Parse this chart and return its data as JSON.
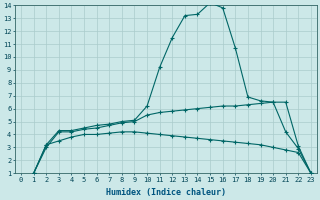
{
  "xlabel": "Humidex (Indice chaleur)",
  "ylabel": "",
  "background_color": "#cce8e8",
  "grid_color": "#aacccc",
  "line_color": "#006666",
  "xlim": [
    -0.5,
    23.5
  ],
  "ylim": [
    1,
    14
  ],
  "xtick_labels": [
    "0",
    "1",
    "2",
    "3",
    "4",
    "5",
    "6",
    "7",
    "8",
    "9",
    "10",
    "11",
    "12",
    "13",
    "14",
    "15",
    "16",
    "17",
    "18",
    "19",
    "20",
    "21",
    "22",
    "23"
  ],
  "ytick_labels": [
    "1",
    "2",
    "3",
    "4",
    "5",
    "6",
    "7",
    "8",
    "9",
    "10",
    "11",
    "12",
    "13",
    "14"
  ],
  "curve1_x": [
    1,
    2,
    3,
    4,
    5,
    6,
    7,
    8,
    9,
    10,
    11,
    12,
    13,
    14,
    15,
    16,
    17,
    18,
    19,
    20,
    21,
    22,
    23
  ],
  "curve1_y": [
    1.0,
    3.2,
    4.3,
    4.3,
    4.5,
    4.7,
    4.8,
    5.0,
    5.1,
    6.2,
    9.2,
    11.5,
    13.2,
    13.3,
    14.2,
    13.8,
    10.7,
    6.9,
    6.6,
    6.5,
    4.2,
    2.9,
    1.0
  ],
  "curve2_x": [
    1,
    2,
    3,
    4,
    5,
    6,
    7,
    8,
    9,
    10,
    11,
    12,
    13,
    14,
    15,
    16,
    17,
    18,
    19,
    20,
    21,
    22,
    23
  ],
  "curve2_y": [
    1.0,
    3.0,
    4.2,
    4.2,
    4.4,
    4.5,
    4.7,
    4.9,
    5.0,
    5.5,
    5.7,
    5.8,
    5.9,
    6.0,
    6.1,
    6.2,
    6.2,
    6.3,
    6.4,
    6.5,
    6.5,
    3.1,
    1.0
  ],
  "curve3_x": [
    1,
    2,
    3,
    4,
    5,
    6,
    7,
    8,
    9,
    10,
    11,
    12,
    13,
    14,
    15,
    16,
    17,
    18,
    19,
    20,
    21,
    22,
    23
  ],
  "curve3_y": [
    1.0,
    3.2,
    3.5,
    3.8,
    4.0,
    4.0,
    4.1,
    4.2,
    4.2,
    4.1,
    4.0,
    3.9,
    3.8,
    3.7,
    3.6,
    3.5,
    3.4,
    3.3,
    3.2,
    3.0,
    2.8,
    2.6,
    1.0
  ],
  "xlabel_color": "#005580",
  "xlabel_fontsize": 6.0,
  "tick_fontsize": 5.0,
  "tick_color": "#004455"
}
